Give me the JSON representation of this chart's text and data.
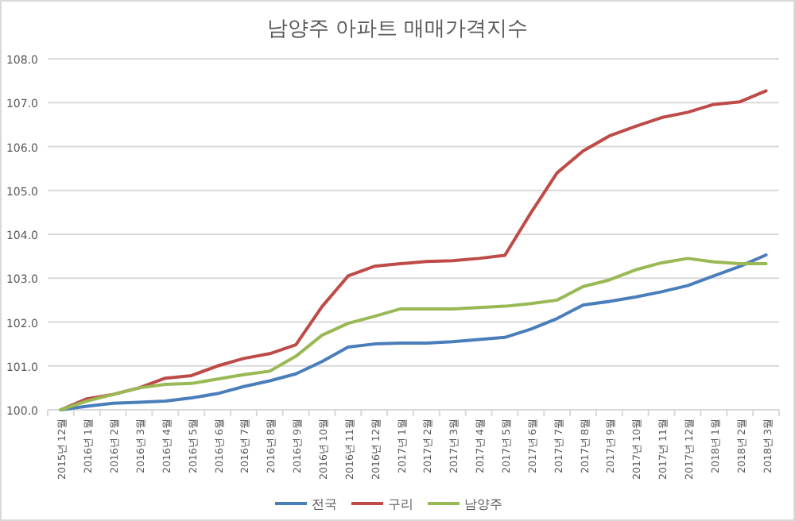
{
  "chart_data": {
    "type": "line",
    "title": "남양주 아파트 매매가격지수",
    "categories": [
      "2015년 12월",
      "2016년 1월",
      "2016년 2월",
      "2016년 3월",
      "2016년 4월",
      "2016년 5월",
      "2016년 6월",
      "2016년 7월",
      "2016년 8월",
      "2016년 9월",
      "2016년 10월",
      "2016년 11월",
      "2016년 12월",
      "2017년 1월",
      "2017년 2월",
      "2017년 3월",
      "2017년 4월",
      "2017년 5월",
      "2017년 6월",
      "2017년 7월",
      "2017년 8월",
      "2017년 9월",
      "2017년 10월",
      "2017년 11월",
      "2017년 12월",
      "2018년 1월",
      "2018년 2월",
      "2018년 3월"
    ],
    "series": [
      {
        "name": "전국",
        "color": "#4a7ebb",
        "values": [
          100.0,
          100.08,
          100.15,
          100.17,
          100.2,
          100.27,
          100.37,
          100.53,
          100.66,
          100.82,
          101.1,
          101.43,
          101.5,
          101.52,
          101.52,
          101.55,
          101.6,
          101.65,
          101.84,
          102.08,
          102.39,
          102.47,
          102.57,
          102.69,
          102.83,
          103.05,
          103.27,
          103.53
        ]
      },
      {
        "name": "구리",
        "color": "#be4b48",
        "values": [
          100.0,
          100.25,
          100.35,
          100.5,
          100.72,
          100.78,
          101.0,
          101.17,
          101.28,
          101.48,
          102.35,
          103.05,
          103.27,
          103.33,
          103.38,
          103.4,
          103.45,
          103.52,
          104.49,
          105.4,
          105.9,
          106.24,
          106.46,
          106.66,
          106.78,
          106.96,
          107.02,
          107.27
        ]
      },
      {
        "name": "남양주",
        "color": "#98b954",
        "values": [
          100.0,
          100.2,
          100.35,
          100.5,
          100.58,
          100.6,
          100.7,
          100.8,
          100.88,
          101.22,
          101.7,
          101.97,
          102.13,
          102.3,
          102.3,
          102.3,
          102.33,
          102.36,
          102.42,
          102.5,
          102.81,
          102.96,
          103.19,
          103.35,
          103.45,
          103.37,
          103.33,
          103.33
        ]
      }
    ],
    "ylim": [
      100,
      108
    ],
    "yticks": [
      {
        "value": 100,
        "label": "100.0"
      },
      {
        "value": 101,
        "label": "101.0"
      },
      {
        "value": 102,
        "label": "102.0"
      },
      {
        "value": 103,
        "label": "103.0"
      },
      {
        "value": 104,
        "label": "104.0"
      },
      {
        "value": 105,
        "label": "105.0"
      },
      {
        "value": 106,
        "label": "106.0"
      },
      {
        "value": 107,
        "label": "107.0"
      },
      {
        "value": 108,
        "label": "108.0"
      }
    ],
    "grid": "y",
    "legend": "bottom",
    "marker": "none",
    "line_style": "solid"
  }
}
